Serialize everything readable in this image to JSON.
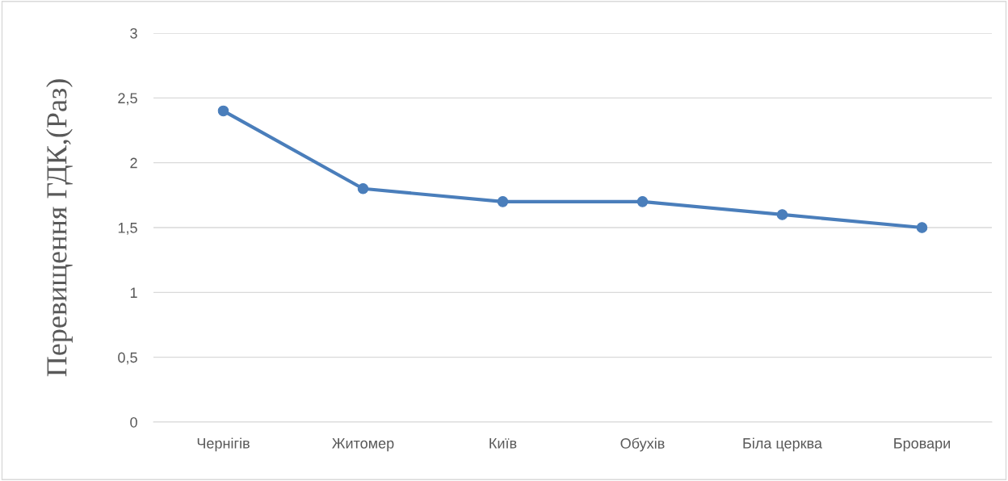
{
  "chart_data": {
    "type": "line",
    "ylabel": "Перевищення ГДК,(Раз)",
    "categories": [
      "Чернігів",
      "Житомер",
      "Київ",
      "Обухів",
      "Біла церква",
      "Бровари"
    ],
    "series": [
      {
        "color": "#4a7ebb",
        "values": [
          2.4,
          1.8,
          1.7,
          1.7,
          1.6,
          1.5
        ]
      }
    ],
    "ylim": [
      0,
      3
    ],
    "yticks": [
      0,
      {
        "value": 0.5,
        "label": "0,5"
      },
      1,
      {
        "value": 1.5,
        "label": "1,5"
      },
      2,
      {
        "value": 2.5,
        "label": "2,5"
      },
      3
    ],
    "grid": "y",
    "marker": "circle",
    "line_style": "solid"
  }
}
